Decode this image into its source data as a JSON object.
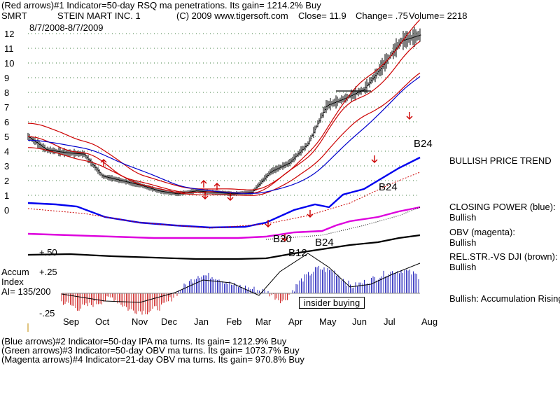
{
  "header": {
    "line1": "(Red arrows)#1 Indicator=50-day RSQ ma penetrations.  Its gain= 1214.2% Buy",
    "ticker": "SMRT",
    "company": "STEIN MART INC. 1",
    "copyright": "(C) 2009 www.tigersoft.com",
    "close": "Close=  11.9",
    "change": "Change= .75",
    "volume": "Volume= 2218",
    "date_range": "8/7/2008-8/7/2009"
  },
  "right_panel": {
    "price_trend": "BULLISH PRICE TREND",
    "closing_power_label": "CLOSING POWER (blue):",
    "closing_power_value": "Bullish",
    "obv_label": "OBV (magenta):",
    "obv_value": "Bullish",
    "relstr_label": "REL.STR.-VS DJI (brown):",
    "relstr_value": "Bullish",
    "accum_label": "Bullish: Accumulation Rising"
  },
  "accum_panel": {
    "title_line1": "Accum",
    "title_line2": "Index",
    "ai": "AI= 135/200",
    "plus50": "+.50",
    "plus25": "+.25",
    "minus25": "-.25",
    "insider": "insider buying"
  },
  "signals": {
    "b24_top": "B24",
    "b24_mid": "B24",
    "b20": "B20",
    "b12": "B12",
    "b24_low": "B24"
  },
  "footer": {
    "line1": "(Blue arrows)#2 Indicator=50-day IPA ma turns.  Its gain= 1212.9% Buy",
    "line2": "(Green arrows)#3 Indicator=50-day OBV ma turns.  Its gain= 1073.7% Buy",
    "line3": "(Magenta arrows)#4 Indicator=21-day OBV ma turns.  Its gain= 970.8% Buy"
  },
  "chart_data": {
    "type": "line",
    "title": "",
    "xlabel": "",
    "ylabel": "",
    "x_ticks": [
      "Sep",
      "Oct",
      "Nov",
      "Dec",
      "Jan",
      "Feb",
      "Mar",
      "Apr",
      "May",
      "Jun",
      "Jul",
      "Aug"
    ],
    "y_ticks": [
      0,
      1,
      2,
      3,
      4,
      5,
      6,
      7,
      8,
      9,
      10,
      11,
      12
    ],
    "ylim": [
      0,
      12
    ],
    "grid": true,
    "series": [
      {
        "name": "",
        "color": "#000000",
        "values": [
          5.0,
          4.1,
          3.9,
          3.8,
          2.3,
          2.0,
          1.7,
          1.3,
          1.1,
          1.3,
          1.2,
          1.1,
          1.2,
          2.6,
          3.2,
          4.5,
          7.1,
          7.6,
          8.2,
          9.8,
          11.5,
          11.9
        ]
      },
      {
        "name": "CLOSING POWER",
        "color": "#0000ee",
        "values": []
      },
      {
        "name": "OBV",
        "color": "#dd00dd",
        "values": []
      },
      {
        "name": "REL.STR.-VS DJI",
        "color": "#7a1a00",
        "values": []
      }
    ],
    "accum_index": {
      "ticks": [
        "+.50",
        "+.25",
        "-.25"
      ],
      "values": [
        -0.1,
        -0.18,
        -0.12,
        -0.05,
        -0.2,
        -0.22,
        -0.15,
        0.05,
        0.22,
        0.2,
        0.1,
        0.06,
        0.02,
        -0.1,
        0.15,
        0.3,
        0.26,
        0.08,
        0.15,
        0.24,
        0.28,
        0.2
      ]
    }
  }
}
